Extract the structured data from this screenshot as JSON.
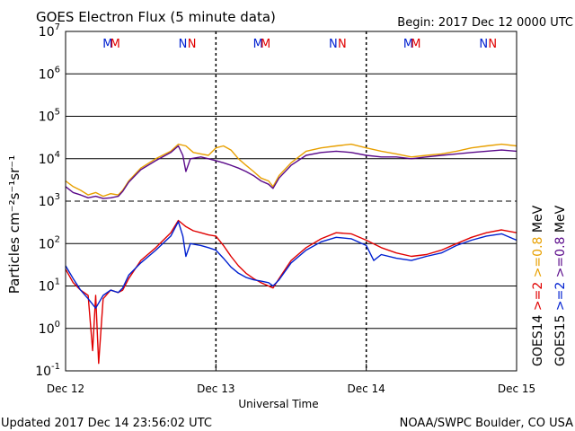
{
  "header": {
    "title": "GOES Electron Flux (5 minute data)",
    "begin": "Begin: 2017 Dec 12 0000 UTC"
  },
  "footer": {
    "updated": "Updated 2017 Dec 14 23:56:02 UTC",
    "credit": "NOAA/SWPC Boulder, CO USA"
  },
  "colors": {
    "goes14_hi": "#e8a000",
    "goes15_hi": "#5a0a8a",
    "goes14_lo": "#e00000",
    "goes15_lo": "#0020d0",
    "marker_m_blue": "#0020d0",
    "marker_m_red": "#e00000"
  },
  "markers": [
    {
      "letter": "M",
      "day": 0.28,
      "color": "blue"
    },
    {
      "letter": "M",
      "day": 0.33,
      "color": "red"
    },
    {
      "letter": "N",
      "day": 0.78,
      "color": "blue"
    },
    {
      "letter": "N",
      "day": 0.84,
      "color": "red"
    },
    {
      "letter": "M",
      "day": 1.28,
      "color": "blue"
    },
    {
      "letter": "M",
      "day": 1.33,
      "color": "red"
    },
    {
      "letter": "N",
      "day": 1.78,
      "color": "blue"
    },
    {
      "letter": "N",
      "day": 1.84,
      "color": "red"
    },
    {
      "letter": "M",
      "day": 2.28,
      "color": "blue"
    },
    {
      "letter": "M",
      "day": 2.33,
      "color": "red"
    },
    {
      "letter": "N",
      "day": 2.78,
      "color": "blue"
    },
    {
      "letter": "N",
      "day": 2.84,
      "color": "red"
    }
  ],
  "chart_data": {
    "type": "line",
    "title": "GOES Electron Flux (5 minute data)",
    "xlabel": "Universal Time",
    "ylabel": "Particles cm⁻²s⁻¹sr⁻¹",
    "yscale": "log",
    "ylim": [
      0.1,
      10000000
    ],
    "yticks": [
      {
        "value": 0.1,
        "base": "10",
        "exp": "-1"
      },
      {
        "value": 1,
        "base": "10",
        "exp": "0"
      },
      {
        "value": 10,
        "base": "10",
        "exp": "1"
      },
      {
        "value": 100,
        "base": "10",
        "exp": "2"
      },
      {
        "value": 1000,
        "base": "10",
        "exp": "3"
      },
      {
        "value": 10000,
        "base": "10",
        "exp": "4"
      },
      {
        "value": 100000,
        "base": "10",
        "exp": "5"
      },
      {
        "value": 1000000,
        "base": "10",
        "exp": "6"
      },
      {
        "value": 10000000,
        "base": "10",
        "exp": "7"
      }
    ],
    "xticks": [
      "Dec 12",
      "Dec 13",
      "Dec 14",
      "Dec 15"
    ],
    "xlim_days": [
      0,
      3
    ],
    "thresholds": [
      1000,
      10000,
      100
    ],
    "legend_right": [
      {
        "text": "GOES14",
        "color": "#000000"
      },
      {
        "text": ">=2",
        "color": "#e00000"
      },
      {
        "text": ">=0.8",
        "color": "#e8a000"
      },
      {
        "text": "MeV",
        "color": "#000000"
      },
      {
        "text": "GOES15",
        "color": "#000000"
      },
      {
        "text": ">=2",
        "color": "#0020d0"
      },
      {
        "text": ">=0.8",
        "color": "#5a0a8a"
      },
      {
        "text": "MeV",
        "color": "#000000"
      }
    ],
    "series": [
      {
        "name": "GOES14 >=0.8 MeV",
        "color": "#e8a000",
        "points": [
          [
            0,
            3000
          ],
          [
            0.05,
            2200
          ],
          [
            0.1,
            1800
          ],
          [
            0.15,
            1400
          ],
          [
            0.2,
            1600
          ],
          [
            0.25,
            1300
          ],
          [
            0.3,
            1500
          ],
          [
            0.35,
            1400
          ],
          [
            0.38,
            1800
          ],
          [
            0.42,
            3000
          ],
          [
            0.5,
            6000
          ],
          [
            0.6,
            10000
          ],
          [
            0.7,
            15000
          ],
          [
            0.75,
            22000
          ],
          [
            0.8,
            20000
          ],
          [
            0.85,
            14000
          ],
          [
            0.9,
            13000
          ],
          [
            0.95,
            12000
          ],
          [
            1.0,
            18000
          ],
          [
            1.05,
            20000
          ],
          [
            1.1,
            16000
          ],
          [
            1.15,
            10000
          ],
          [
            1.2,
            7000
          ],
          [
            1.25,
            5000
          ],
          [
            1.3,
            3500
          ],
          [
            1.35,
            3000
          ],
          [
            1.38,
            2200
          ],
          [
            1.42,
            4000
          ],
          [
            1.5,
            8000
          ],
          [
            1.6,
            15000
          ],
          [
            1.7,
            18000
          ],
          [
            1.8,
            20000
          ],
          [
            1.9,
            22000
          ],
          [
            2.0,
            18000
          ],
          [
            2.1,
            15000
          ],
          [
            2.2,
            13000
          ],
          [
            2.3,
            11000
          ],
          [
            2.4,
            12000
          ],
          [
            2.5,
            13000
          ],
          [
            2.6,
            15000
          ],
          [
            2.7,
            18000
          ],
          [
            2.8,
            20000
          ],
          [
            2.9,
            22000
          ],
          [
            3.0,
            20000
          ]
        ]
      },
      {
        "name": "GOES15 >=0.8 MeV",
        "color": "#5a0a8a",
        "points": [
          [
            0,
            2200
          ],
          [
            0.05,
            1600
          ],
          [
            0.1,
            1400
          ],
          [
            0.15,
            1200
          ],
          [
            0.2,
            1300
          ],
          [
            0.25,
            1150
          ],
          [
            0.3,
            1200
          ],
          [
            0.35,
            1300
          ],
          [
            0.38,
            1700
          ],
          [
            0.42,
            2800
          ],
          [
            0.5,
            5500
          ],
          [
            0.6,
            9000
          ],
          [
            0.7,
            14000
          ],
          [
            0.75,
            20000
          ],
          [
            0.78,
            12000
          ],
          [
            0.8,
            5000
          ],
          [
            0.83,
            10000
          ],
          [
            0.9,
            11000
          ],
          [
            0.95,
            10000
          ],
          [
            1.0,
            9000
          ],
          [
            1.05,
            8000
          ],
          [
            1.1,
            7000
          ],
          [
            1.15,
            6000
          ],
          [
            1.2,
            5000
          ],
          [
            1.25,
            4000
          ],
          [
            1.3,
            3000
          ],
          [
            1.35,
            2500
          ],
          [
            1.38,
            2000
          ],
          [
            1.42,
            3500
          ],
          [
            1.5,
            7000
          ],
          [
            1.6,
            12000
          ],
          [
            1.7,
            14000
          ],
          [
            1.8,
            15000
          ],
          [
            1.9,
            14000
          ],
          [
            2.0,
            12000
          ],
          [
            2.1,
            11000
          ],
          [
            2.2,
            11000
          ],
          [
            2.3,
            10000
          ],
          [
            2.4,
            11000
          ],
          [
            2.5,
            12000
          ],
          [
            2.6,
            13000
          ],
          [
            2.7,
            14000
          ],
          [
            2.8,
            15000
          ],
          [
            2.9,
            16000
          ],
          [
            3.0,
            15000
          ]
        ]
      },
      {
        "name": "GOES14 >=2 MeV",
        "color": "#e00000",
        "points": [
          [
            0,
            25
          ],
          [
            0.05,
            12
          ],
          [
            0.1,
            8
          ],
          [
            0.15,
            6
          ],
          [
            0.18,
            0.3
          ],
          [
            0.2,
            6
          ],
          [
            0.22,
            0.15
          ],
          [
            0.25,
            5
          ],
          [
            0.3,
            8
          ],
          [
            0.35,
            7
          ],
          [
            0.38,
            8
          ],
          [
            0.42,
            15
          ],
          [
            0.5,
            40
          ],
          [
            0.6,
            80
          ],
          [
            0.7,
            180
          ],
          [
            0.75,
            350
          ],
          [
            0.8,
            250
          ],
          [
            0.85,
            200
          ],
          [
            0.9,
            180
          ],
          [
            0.95,
            160
          ],
          [
            1.0,
            150
          ],
          [
            1.05,
            90
          ],
          [
            1.1,
            50
          ],
          [
            1.15,
            30
          ],
          [
            1.2,
            20
          ],
          [
            1.25,
            15
          ],
          [
            1.3,
            12
          ],
          [
            1.35,
            10
          ],
          [
            1.38,
            9
          ],
          [
            1.42,
            15
          ],
          [
            1.5,
            40
          ],
          [
            1.6,
            80
          ],
          [
            1.7,
            130
          ],
          [
            1.8,
            180
          ],
          [
            1.9,
            170
          ],
          [
            2.0,
            120
          ],
          [
            2.1,
            80
          ],
          [
            2.2,
            60
          ],
          [
            2.3,
            50
          ],
          [
            2.4,
            55
          ],
          [
            2.5,
            70
          ],
          [
            2.6,
            100
          ],
          [
            2.7,
            140
          ],
          [
            2.8,
            180
          ],
          [
            2.9,
            210
          ],
          [
            3.0,
            180
          ]
        ]
      },
      {
        "name": "GOES15 >=2 MeV",
        "color": "#0020d0",
        "points": [
          [
            0,
            30
          ],
          [
            0.05,
            15
          ],
          [
            0.1,
            8
          ],
          [
            0.15,
            5
          ],
          [
            0.2,
            3
          ],
          [
            0.25,
            6
          ],
          [
            0.3,
            8
          ],
          [
            0.35,
            7
          ],
          [
            0.38,
            9
          ],
          [
            0.42,
            18
          ],
          [
            0.5,
            35
          ],
          [
            0.6,
            70
          ],
          [
            0.7,
            150
          ],
          [
            0.75,
            330
          ],
          [
            0.78,
            150
          ],
          [
            0.8,
            50
          ],
          [
            0.83,
            100
          ],
          [
            0.9,
            90
          ],
          [
            0.95,
            80
          ],
          [
            1.0,
            70
          ],
          [
            1.05,
            45
          ],
          [
            1.1,
            28
          ],
          [
            1.15,
            20
          ],
          [
            1.2,
            16
          ],
          [
            1.25,
            14
          ],
          [
            1.3,
            13
          ],
          [
            1.35,
            12
          ],
          [
            1.38,
            10
          ],
          [
            1.42,
            14
          ],
          [
            1.5,
            35
          ],
          [
            1.6,
            70
          ],
          [
            1.7,
            110
          ],
          [
            1.8,
            140
          ],
          [
            1.9,
            130
          ],
          [
            2.0,
            90
          ],
          [
            2.05,
            40
          ],
          [
            2.1,
            55
          ],
          [
            2.2,
            45
          ],
          [
            2.3,
            40
          ],
          [
            2.4,
            50
          ],
          [
            2.5,
            60
          ],
          [
            2.6,
            90
          ],
          [
            2.7,
            120
          ],
          [
            2.8,
            150
          ],
          [
            2.9,
            170
          ],
          [
            3.0,
            120
          ]
        ]
      }
    ]
  }
}
